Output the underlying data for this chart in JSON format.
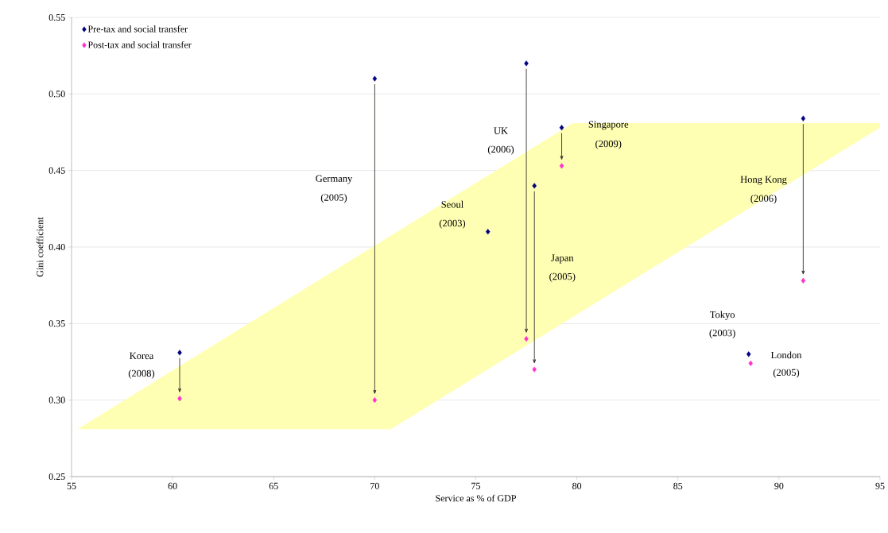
{
  "chart_data": {
    "type": "scatter",
    "xlabel": "Service as % of GDP",
    "ylabel": "Gini coefficient",
    "xlim": [
      55,
      95
    ],
    "ylim": [
      0.25,
      0.55
    ],
    "xticks": [
      55,
      60,
      65,
      70,
      75,
      80,
      85,
      90,
      95
    ],
    "yticks": [
      {
        "value": 0.25,
        "label": "0.25"
      },
      {
        "value": 0.3,
        "label": "0.30"
      },
      {
        "value": 0.35,
        "label": "0.35"
      },
      {
        "value": 0.4,
        "label": "0.40"
      },
      {
        "value": 0.45,
        "label": "0.45"
      },
      {
        "value": 0.5,
        "label": "0.50"
      },
      {
        "value": 0.55,
        "label": "0.55"
      }
    ],
    "grid": "y",
    "legend": "top left",
    "series": [
      {
        "name": "Pre-tax and social transfer",
        "color": "#000080",
        "marker": "diamond",
        "x": [
          60.35,
          70.0,
          77.5,
          77.9,
          75.6,
          79.25,
          91.2,
          88.5
        ],
        "values": [
          0.331,
          0.51,
          0.52,
          0.44,
          0.41,
          0.478,
          0.484,
          0.33
        ]
      },
      {
        "name": "Post-tax and social transfer",
        "color": "#ff33cc",
        "marker": "diamond",
        "x": [
          60.35,
          70.0,
          77.5,
          77.9,
          79.25,
          91.2,
          88.6
        ],
        "values": [
          0.301,
          0.3,
          0.34,
          0.32,
          0.453,
          0.378,
          0.324
        ]
      },
      {
        "type": "area",
        "color": "#ffffb3",
        "x": [
          55.3,
          70.8,
          95,
          95,
          79.8,
          55.3
        ],
        "values": [
          0.281,
          0.281,
          0.478,
          0.481,
          0.481,
          0.281
        ]
      }
    ],
    "annotations": [
      "Korea",
      "(2008)",
      "Germany",
      "(2005)",
      "UK",
      "(2006)",
      "Seoul",
      "(2003)",
      "Singapore",
      "(2009)",
      "Japan",
      "(2005)",
      "Hong Kong",
      "(2006)",
      "Tokyo",
      "(2003)",
      "London",
      "(2005)"
    ]
  }
}
